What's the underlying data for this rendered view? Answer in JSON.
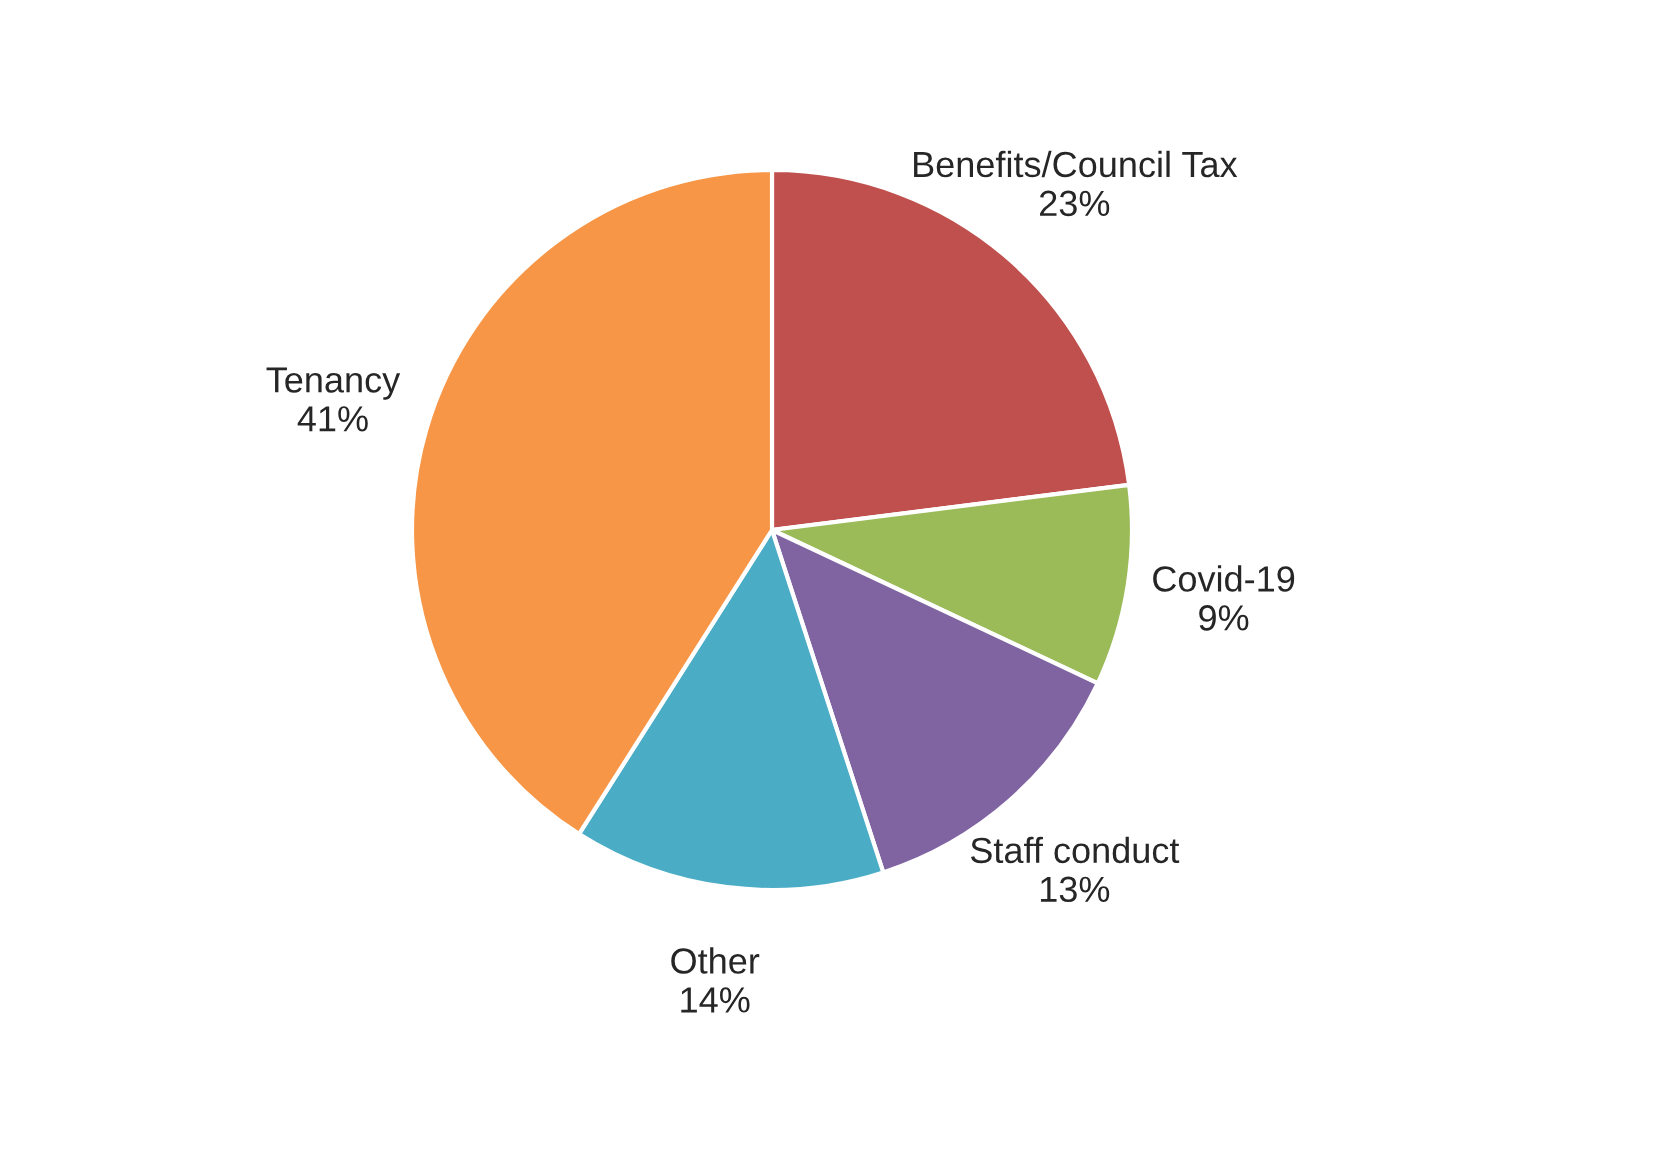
{
  "chart_data": {
    "type": "pie",
    "categories": [
      "Benefits/Council Tax",
      "Covid-19",
      "Staff conduct",
      "Other",
      "Tenancy"
    ],
    "values": [
      23,
      9,
      13,
      14,
      41
    ],
    "value_labels": [
      "23%",
      "9%",
      "13%",
      "14%",
      "41%"
    ],
    "colors": [
      "#c0504d",
      "#9bbb59",
      "#8064a2",
      "#4bacc6",
      "#f79646"
    ]
  }
}
